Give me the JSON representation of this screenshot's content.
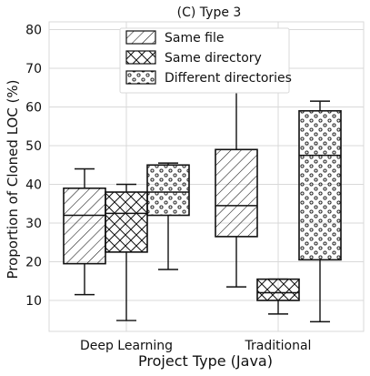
{
  "chart_data": {
    "type": "box",
    "title": "(C) Type 3",
    "xlabel": "Project Type (Java)",
    "ylabel": "Proportion of Cloned LOC (%)",
    "ylim": [
      2,
      82
    ],
    "yticks": [
      10,
      20,
      30,
      40,
      50,
      60,
      70,
      80
    ],
    "categories": [
      "Deep Learning",
      "Traditional"
    ],
    "grid": true,
    "legend_position": "top-center",
    "series": [
      {
        "name": "Same file",
        "pattern": "diagonal",
        "boxes": [
          {
            "category": "Deep Learning",
            "min": 11.5,
            "q1": 19.5,
            "median": 32.0,
            "q3": 39.0,
            "max": 44.0
          },
          {
            "category": "Traditional",
            "min": 13.5,
            "q1": 26.5,
            "median": 34.5,
            "q3": 49.0,
            "max": 78.0
          }
        ]
      },
      {
        "name": "Same directory",
        "pattern": "crosshatch",
        "boxes": [
          {
            "category": "Deep Learning",
            "min": 4.8,
            "q1": 22.5,
            "median": 32.5,
            "q3": 38.0,
            "max": 40.0
          },
          {
            "category": "Traditional",
            "min": 6.5,
            "q1": 10.0,
            "median": 12.0,
            "q3": 15.5,
            "max": 15.5
          }
        ]
      },
      {
        "name": "Different directories",
        "pattern": "dots",
        "boxes": [
          {
            "category": "Deep Learning",
            "min": 18.0,
            "q1": 32.0,
            "median": 38.0,
            "q3": 45.0,
            "max": 45.5
          },
          {
            "category": "Traditional",
            "min": 4.5,
            "q1": 20.5,
            "median": 47.5,
            "q3": 59.0,
            "max": 61.5
          }
        ]
      }
    ]
  }
}
